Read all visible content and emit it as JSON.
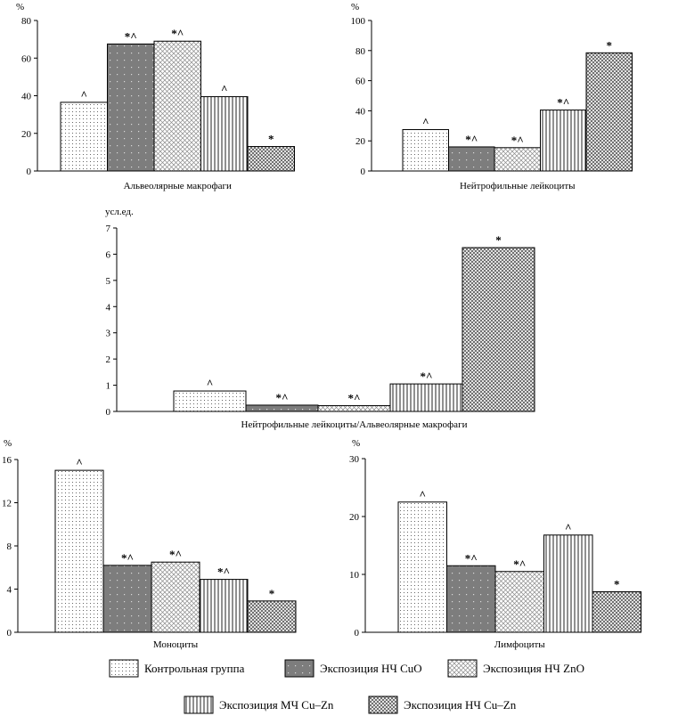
{
  "patterns": {
    "control": {
      "fill": "#ffffff",
      "style": "dots-sparse"
    },
    "cuo": {
      "fill": "#808080",
      "style": "dots-on-grey"
    },
    "zno": {
      "fill": "#ffffff",
      "style": "crosshatch"
    },
    "mc_cuzn": {
      "fill": "#ffffff",
      "style": "vertical-lines"
    },
    "nc_cuzn": {
      "fill": "#ffffff",
      "style": "dense-crosshatch"
    }
  },
  "legend": {
    "items": [
      {
        "key": "control",
        "label": "Контрольная группа"
      },
      {
        "key": "cuo",
        "label": "Экспозиция НЧ CuO"
      },
      {
        "key": "zno",
        "label": "Экспозиция НЧ ZnO"
      },
      {
        "key": "mc_cuzn",
        "label": "Экспозиция МЧ Cu–Zn"
      },
      {
        "key": "nc_cuzn",
        "label": "Экспозиция НЧ Cu–Zn"
      }
    ]
  },
  "chart_data": [
    {
      "id": "alveolar",
      "type": "bar",
      "xlabel": "Альвеолярные макрофаги",
      "unit": "%",
      "ylim": [
        0,
        80
      ],
      "yticks": [
        0,
        20,
        40,
        60,
        80
      ],
      "values": [
        36.5,
        67.5,
        69,
        39.5,
        13
      ],
      "marks": [
        "^",
        "*^",
        "*^",
        "^",
        "*"
      ]
    },
    {
      "id": "neutrophils",
      "type": "bar",
      "xlabel": "Нейтрофильные лейкоциты",
      "unit": "%",
      "ylim": [
        0,
        100
      ],
      "yticks": [
        0,
        20,
        40,
        60,
        80,
        100
      ],
      "values": [
        27.5,
        16,
        15.5,
        40.5,
        78.5
      ],
      "marks": [
        "^",
        "*^",
        "*^",
        "*^",
        "*"
      ]
    },
    {
      "id": "ratio",
      "type": "bar",
      "xlabel": "Нейтрофильные лейкоциты/Альвеолярные макрофаги",
      "unit": "усл.ед.",
      "ylim": [
        0,
        7
      ],
      "yticks": [
        0,
        1,
        2,
        3,
        4,
        5,
        6,
        7
      ],
      "values": [
        0.78,
        0.24,
        0.22,
        1.05,
        6.25
      ],
      "marks": [
        "^",
        "*^",
        "*^",
        "*^",
        "*"
      ]
    },
    {
      "id": "monocytes",
      "type": "bar",
      "xlabel": "Моноциты",
      "unit": "%",
      "ylim": [
        0,
        16
      ],
      "yticks": [
        0,
        4,
        8,
        12,
        16
      ],
      "values": [
        15,
        6.2,
        6.5,
        4.9,
        2.9
      ],
      "marks": [
        "^",
        "*^",
        "*^",
        "*^",
        "*"
      ]
    },
    {
      "id": "lymphocytes",
      "type": "bar",
      "xlabel": "Лимфоциты",
      "unit": "%",
      "ylim": [
        0,
        30
      ],
      "yticks": [
        0,
        10,
        20,
        30
      ],
      "values": [
        22.5,
        11.5,
        10.5,
        16.8,
        7
      ],
      "marks": [
        "^",
        "*^",
        "*^",
        "^",
        "*"
      ]
    }
  ]
}
